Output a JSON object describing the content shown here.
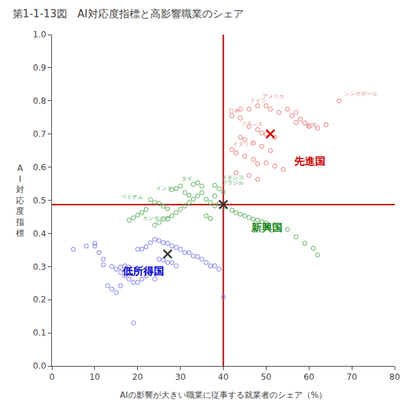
{
  "chart_data": {
    "type": "scatter",
    "title": "第1-1-13図　AI対応度指標と高影響職業のシェア",
    "x_label": "AIの影響が大きい職業に従事する就業者のシェア（%）",
    "y_label": "AI対応度指標",
    "xlim": [
      0,
      80
    ],
    "ylim": [
      0.0,
      1.0
    ],
    "xticks": [
      0,
      10,
      20,
      30,
      40,
      50,
      60,
      70,
      80
    ],
    "yticks": [
      {
        "value": 0.0,
        "label": "0.0"
      },
      0.1,
      0.2,
      0.3,
      0.4,
      0.5,
      0.6,
      0.7,
      0.8,
      0.9,
      {
        "value": 1.0,
        "label": "1.0"
      }
    ],
    "grid": false,
    "series": [
      {
        "color": "#E87878",
        "marker": "open circle",
        "x": [
          42,
          44,
          46,
          48,
          50,
          51,
          53,
          55,
          56,
          57,
          58,
          59,
          60,
          62,
          64,
          46,
          48,
          49,
          50,
          52,
          44,
          45,
          47,
          49,
          51,
          42,
          43,
          45,
          47,
          48,
          50,
          52,
          54,
          43,
          46,
          48,
          44,
          57,
          67
        ],
        "values": [
          0.755,
          0.775,
          0.775,
          0.785,
          0.785,
          0.775,
          0.765,
          0.775,
          0.755,
          0.765,
          0.745,
          0.733,
          0.723,
          0.718,
          0.728,
          0.723,
          0.713,
          0.703,
          0.7,
          0.69,
          0.69,
          0.683,
          0.673,
          0.663,
          0.65,
          0.653,
          0.643,
          0.633,
          0.623,
          0.61,
          0.613,
          0.603,
          0.593,
          0.583,
          0.575,
          0.563,
          0.748,
          0.735,
          0.8
        ]
      },
      {
        "color": "#55AA55",
        "marker": "open circle",
        "x": [
          38,
          39,
          40,
          38,
          36,
          37,
          38,
          40,
          42,
          43,
          44,
          45,
          46,
          47,
          48,
          49,
          50,
          52,
          53,
          55,
          57,
          59,
          61,
          62,
          35,
          34,
          33,
          32,
          31,
          30,
          29,
          28,
          27,
          26,
          25,
          24,
          36,
          37,
          39,
          30,
          29,
          28,
          31,
          32,
          23,
          24,
          25,
          26,
          27,
          22,
          21,
          20,
          19,
          18,
          35,
          34,
          33
        ],
        "values": [
          0.545,
          0.535,
          0.525,
          0.513,
          0.503,
          0.493,
          0.483,
          0.48,
          0.47,
          0.463,
          0.458,
          0.453,
          0.448,
          0.443,
          0.44,
          0.435,
          0.432,
          0.425,
          0.42,
          0.412,
          0.39,
          0.37,
          0.355,
          0.335,
          0.523,
          0.513,
          0.503,
          0.493,
          0.483,
          0.473,
          0.463,
          0.453,
          0.443,
          0.443,
          0.433,
          0.425,
          0.453,
          0.445,
          0.49,
          0.543,
          0.535,
          0.532,
          0.523,
          0.515,
          0.502,
          0.494,
          0.49,
          0.482,
          0.474,
          0.472,
          0.463,
          0.455,
          0.447,
          0.44,
          0.543,
          0.553,
          0.548
        ]
      },
      {
        "color": "#7878E8",
        "marker": "open circle",
        "x": [
          5,
          8,
          10,
          12,
          14,
          16,
          17,
          18,
          19,
          20,
          21,
          22,
          23,
          24,
          25,
          26,
          27,
          28,
          29,
          30,
          15,
          16,
          17,
          18,
          19,
          20,
          21,
          22,
          23,
          24,
          13,
          14,
          15,
          16,
          25,
          26,
          27,
          28,
          29,
          31,
          32,
          33,
          34,
          35,
          36,
          37,
          38,
          39,
          40,
          19,
          12,
          11,
          10
        ],
        "values": [
          0.352,
          0.362,
          0.37,
          0.305,
          0.3,
          0.298,
          0.302,
          0.298,
          0.292,
          0.352,
          0.353,
          0.36,
          0.372,
          0.382,
          0.378,
          0.372,
          0.37,
          0.362,
          0.358,
          0.352,
          0.292,
          0.282,
          0.272,
          0.262,
          0.252,
          0.252,
          0.262,
          0.272,
          0.282,
          0.262,
          0.242,
          0.232,
          0.222,
          0.242,
          0.322,
          0.32,
          0.312,
          0.312,
          0.302,
          0.342,
          0.342,
          0.332,
          0.33,
          0.322,
          0.312,
          0.302,
          0.302,
          0.292,
          0.208,
          0.13,
          0.322,
          0.342,
          0.362
        ]
      },
      {
        "color": "#CC0000",
        "marker": "x",
        "x": [
          51
        ],
        "values": [
          0.7
        ]
      },
      {
        "color": "#333333",
        "marker": "x",
        "x": [
          40
        ],
        "values": [
          0.487
        ]
      },
      {
        "color": "#333333",
        "marker": "x",
        "x": [
          27
        ],
        "values": [
          0.338
        ]
      }
    ],
    "reference_lines": [
      {
        "axis": "x",
        "value": 40,
        "color": "#AA0000"
      },
      {
        "axis": "y",
        "value": 0.487,
        "color": "#AA0000"
      }
    ],
    "annotations": [
      {
        "text": "日本",
        "x": 41,
        "y": 0.758,
        "color": "#E09090"
      },
      {
        "text": "アメリカ",
        "x": 49,
        "y": 0.802,
        "color": "#E09090"
      },
      {
        "text": "ドイツ",
        "x": 46,
        "y": 0.79,
        "color": "#E09090"
      },
      {
        "text": "フランス",
        "x": 44,
        "y": 0.718,
        "color": "#E09090"
      },
      {
        "text": "イタリア",
        "x": 42,
        "y": 0.658,
        "color": "#E09090"
      },
      {
        "text": "英国",
        "x": 59,
        "y": 0.715,
        "color": "#E09090"
      },
      {
        "text": "シンガポール",
        "x": 68,
        "y": 0.81,
        "color": "#E09090"
      },
      {
        "text": "タイ",
        "x": 30,
        "y": 0.553,
        "color": "#55AA55"
      },
      {
        "text": "インド",
        "x": 24,
        "y": 0.523,
        "color": "#55AA55"
      },
      {
        "text": "ベトナム",
        "x": 16,
        "y": 0.5,
        "color": "#55AA55"
      },
      {
        "text": "カンボジア",
        "x": 21,
        "y": 0.434,
        "color": "#55AA55"
      },
      {
        "text": "メキシコ",
        "x": 39.5,
        "y": 0.558,
        "color": "#55AA55"
      },
      {
        "text": "ブラジル",
        "x": 39.5,
        "y": 0.54,
        "color": "#55AA55"
      }
    ],
    "group_labels": [
      {
        "text": "先進国",
        "x": 56,
        "y": 0.618,
        "color": "#CC0000"
      },
      {
        "text": "新興国",
        "x": 46,
        "y": 0.418,
        "color": "#228822"
      },
      {
        "text": "低所得国",
        "x": 16,
        "y": 0.285,
        "color": "#0000CC"
      }
    ]
  }
}
